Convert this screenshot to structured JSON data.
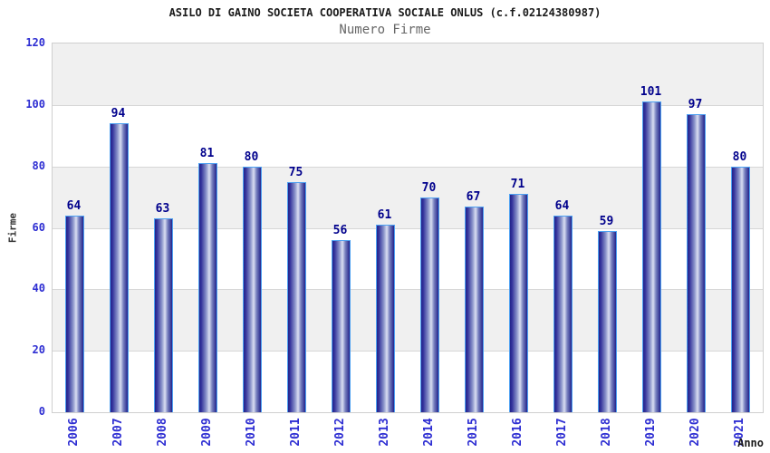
{
  "header": {
    "title": "ASILO DI GAINO SOCIETA COOPERATIVA SOCIALE ONLUS (c.f.02124380987)",
    "subtitle": "Numero Firme"
  },
  "axes": {
    "y_title": "Firme",
    "x_title": "Anno"
  },
  "chart_data": {
    "type": "bar",
    "title": "ASILO DI GAINO SOCIETA COOPERATIVA SOCIALE ONLUS (c.f.02124380987)",
    "subtitle": "Numero Firme",
    "xlabel": "Anno",
    "ylabel": "Firme",
    "categories": [
      "2006",
      "2007",
      "2008",
      "2009",
      "2010",
      "2011",
      "2012",
      "2013",
      "2014",
      "2015",
      "2016",
      "2017",
      "2018",
      "2019",
      "2020",
      "2021"
    ],
    "values": [
      64,
      94,
      63,
      81,
      80,
      75,
      56,
      61,
      70,
      67,
      71,
      64,
      59,
      101,
      97,
      80
    ],
    "ylim": [
      0,
      120
    ],
    "ytick_step": 20,
    "ytick_labels": [
      "0",
      "20",
      "40",
      "60",
      "80",
      "100",
      "120"
    ],
    "grid": true,
    "legend": false,
    "value_labels_shown": true,
    "x_labels_rotated": true
  },
  "colors": {
    "tick_label_blue": "#2d2dd2",
    "value_label_navy": "#00008c",
    "bar_border_blue": "#4da1f2",
    "bar_gradient": [
      "#23238b",
      "#34349c",
      "#8a93ca",
      "#dadff2",
      "#7a83c0",
      "#23238b"
    ],
    "bar_gradient_stops_pct": [
      0,
      12,
      40,
      58,
      74,
      100
    ],
    "band_gray": "#f0f0f0",
    "band_white": "#ffffff",
    "gridline_gray": "#d7d7d7",
    "plot_border_gray": "#cfcfcf",
    "title_color": "#1a1a1a",
    "subtitle_color": "#666666",
    "axis_title_color": "#333333"
  }
}
